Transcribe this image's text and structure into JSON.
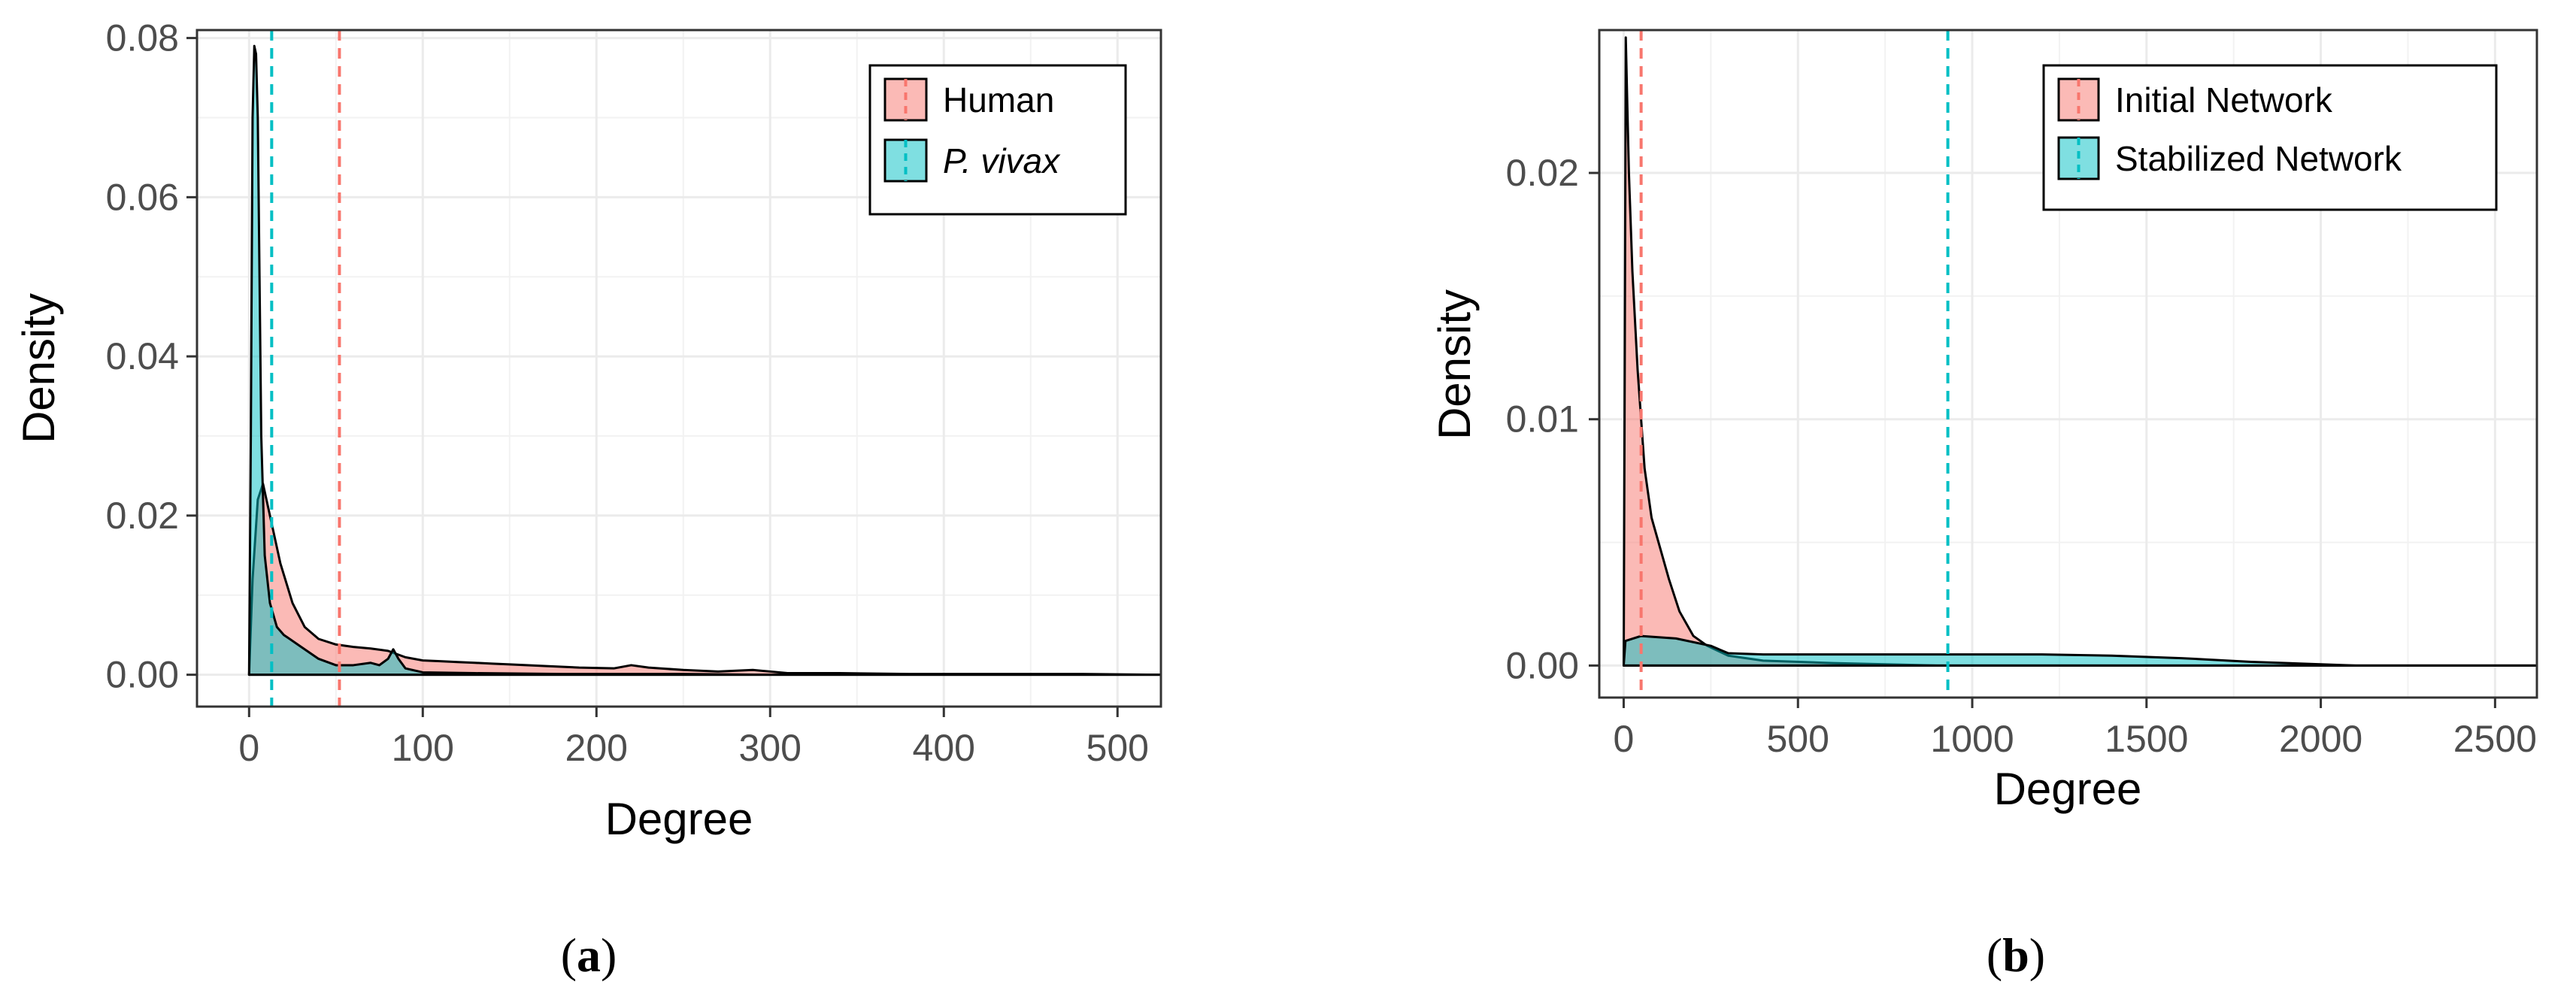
{
  "chart_data": [
    {
      "panel": "a",
      "caption": {
        "open": "(",
        "letter": "a",
        "close": ")"
      },
      "type": "area",
      "title": "",
      "xlabel": "Degree",
      "ylabel": "Density",
      "xlim": [
        -30,
        525
      ],
      "ylim": [
        -0.004,
        0.081
      ],
      "x_ticks": [
        0,
        100,
        200,
        300,
        400,
        500
      ],
      "x_tick_labels": [
        "0",
        "100",
        "200",
        "300",
        "400",
        "500"
      ],
      "y_ticks": [
        0,
        0.02,
        0.04,
        0.06,
        0.08
      ],
      "y_tick_labels": [
        "0.00",
        "0.02",
        "0.04",
        "0.06",
        "0.08"
      ],
      "grid": true,
      "legend_position": "top-right",
      "series": [
        {
          "name": "Human",
          "color": "#F8766D",
          "mean_line": 52,
          "points": [
            [
              0,
              0.0
            ],
            [
              2,
              0.012
            ],
            [
              5,
              0.022
            ],
            [
              8,
              0.024
            ],
            [
              12,
              0.02
            ],
            [
              18,
              0.014
            ],
            [
              25,
              0.009
            ],
            [
              32,
              0.006
            ],
            [
              40,
              0.0045
            ],
            [
              50,
              0.0038
            ],
            [
              60,
              0.0035
            ],
            [
              70,
              0.0033
            ],
            [
              80,
              0.003
            ],
            [
              90,
              0.0022
            ],
            [
              100,
              0.0018
            ],
            [
              110,
              0.0017
            ],
            [
              120,
              0.0016
            ],
            [
              130,
              0.0015
            ],
            [
              140,
              0.0014
            ],
            [
              150,
              0.0013
            ],
            [
              170,
              0.0011
            ],
            [
              190,
              0.0009
            ],
            [
              210,
              0.0008
            ],
            [
              220,
              0.0012
            ],
            [
              230,
              0.0009
            ],
            [
              250,
              0.0006
            ],
            [
              270,
              0.0004
            ],
            [
              290,
              0.0006
            ],
            [
              310,
              0.0002
            ],
            [
              340,
              0.0002
            ],
            [
              380,
              0.0001
            ],
            [
              420,
              0.0001
            ],
            [
              480,
              0.0001
            ],
            [
              525,
              0.0
            ]
          ]
        },
        {
          "name": "P. vivax",
          "color": "#00BFC4",
          "mean_line": 13,
          "points": [
            [
              0,
              0.0
            ],
            [
              1,
              0.03
            ],
            [
              2,
              0.07
            ],
            [
              3,
              0.079
            ],
            [
              4,
              0.078
            ],
            [
              5,
              0.07
            ],
            [
              6,
              0.05
            ],
            [
              7,
              0.03
            ],
            [
              9,
              0.015
            ],
            [
              12,
              0.009
            ],
            [
              16,
              0.006
            ],
            [
              20,
              0.005
            ],
            [
              30,
              0.0035
            ],
            [
              40,
              0.002
            ],
            [
              50,
              0.0012
            ],
            [
              60,
              0.0012
            ],
            [
              70,
              0.0015
            ],
            [
              75,
              0.0012
            ],
            [
              80,
              0.002
            ],
            [
              83,
              0.0032
            ],
            [
              86,
              0.002
            ],
            [
              90,
              0.0008
            ],
            [
              100,
              0.0003
            ],
            [
              130,
              0.0002
            ],
            [
              180,
              0.0001
            ],
            [
              250,
              0.0001
            ],
            [
              300,
              0.0
            ],
            [
              525,
              0.0
            ]
          ]
        }
      ]
    },
    {
      "panel": "b",
      "caption": {
        "open": "(",
        "letter": "b",
        "close": ")"
      },
      "type": "area",
      "title": "",
      "xlabel": "Degree",
      "ylabel": "Density",
      "xlim": [
        -70,
        2620
      ],
      "ylim": [
        -0.0013,
        0.0258
      ],
      "x_ticks": [
        0,
        500,
        1000,
        1500,
        2000,
        2500
      ],
      "x_tick_labels": [
        "0",
        "500",
        "1000",
        "1500",
        "2000",
        "2500"
      ],
      "y_ticks": [
        0,
        0.01,
        0.02
      ],
      "y_tick_labels": [
        "0.00",
        "0.01",
        "0.02"
      ],
      "grid": true,
      "legend_position": "top-right",
      "series": [
        {
          "name": "Initial Network",
          "color": "#F8766D",
          "mean_line": 50,
          "points": [
            [
              0,
              0.0
            ],
            [
              3,
              0.012
            ],
            [
              6,
              0.0255
            ],
            [
              10,
              0.023
            ],
            [
              15,
              0.02
            ],
            [
              25,
              0.016
            ],
            [
              40,
              0.012
            ],
            [
              60,
              0.008
            ],
            [
              80,
              0.006
            ],
            [
              100,
              0.005
            ],
            [
              130,
              0.0035
            ],
            [
              160,
              0.0022
            ],
            [
              200,
              0.0012
            ],
            [
              240,
              0.0008
            ],
            [
              300,
              0.0004
            ],
            [
              400,
              0.0002
            ],
            [
              600,
              0.0001
            ],
            [
              900,
              0.0
            ],
            [
              2620,
              0.0
            ]
          ]
        },
        {
          "name": "Stabilized Network",
          "color": "#00BFC4",
          "mean_line": 930,
          "points": [
            [
              0,
              0.0
            ],
            [
              5,
              0.001
            ],
            [
              50,
              0.0012
            ],
            [
              150,
              0.0011
            ],
            [
              250,
              0.0008
            ],
            [
              300,
              0.0005
            ],
            [
              400,
              0.00045
            ],
            [
              600,
              0.00045
            ],
            [
              800,
              0.00045
            ],
            [
              1000,
              0.00045
            ],
            [
              1200,
              0.00045
            ],
            [
              1400,
              0.0004
            ],
            [
              1600,
              0.0003
            ],
            [
              1800,
              0.00015
            ],
            [
              2000,
              5e-05
            ],
            [
              2100,
              0.0
            ],
            [
              2620,
              0.0
            ]
          ]
        }
      ]
    }
  ]
}
